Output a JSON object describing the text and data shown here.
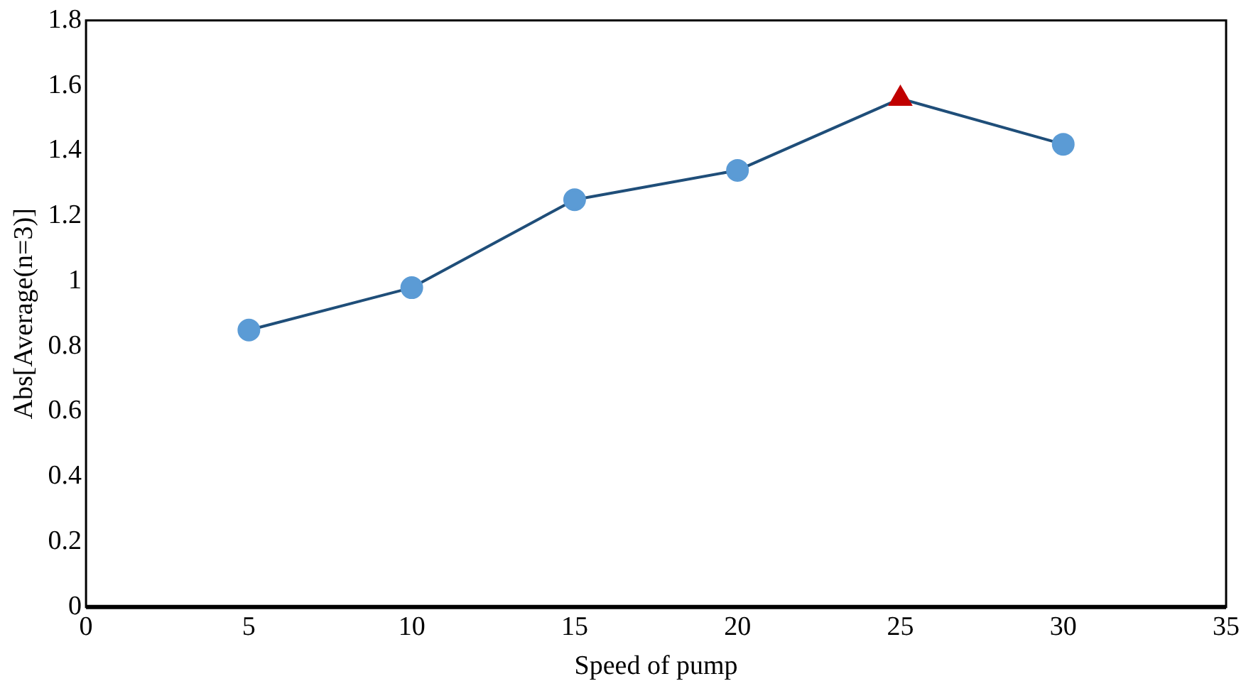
{
  "chart_data": {
    "type": "line",
    "xlabel": "Speed of pump",
    "ylabel": "Abs[Average(n=3)]",
    "x": [
      5,
      10,
      15,
      20,
      25,
      30
    ],
    "series": [
      {
        "type": "line",
        "color": "#1f4e79",
        "marker": "none",
        "values": [
          0.85,
          0.98,
          1.25,
          1.34,
          1.56,
          1.42
        ]
      },
      {
        "type": "scatter",
        "color": "#5b9bd5",
        "marker": "circle",
        "values": [
          0.85,
          0.98,
          1.25,
          1.34,
          null,
          1.42
        ]
      },
      {
        "type": "scatter",
        "color": "#c00000",
        "marker": "triangle",
        "x": [
          25
        ],
        "values": [
          1.56
        ]
      }
    ],
    "xlim": [
      0,
      35
    ],
    "xticks": [
      0,
      5,
      10,
      15,
      20,
      25,
      30,
      35
    ],
    "ylim": [
      0,
      1.8
    ],
    "yticks": [
      0,
      0.2,
      0.4,
      0.6,
      0.8,
      1,
      1.2,
      1.4,
      1.6,
      1.8
    ],
    "grid": false,
    "legend": false
  }
}
